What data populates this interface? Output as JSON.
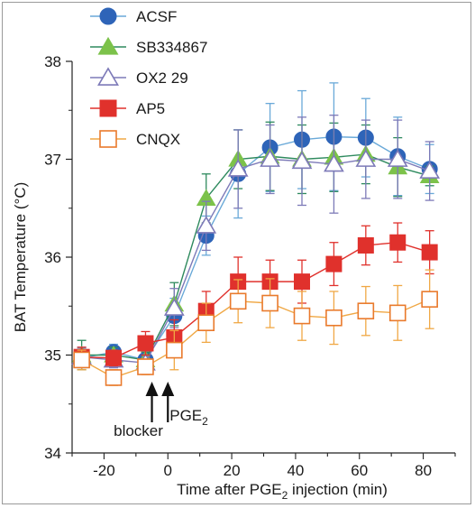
{
  "chart_data": {
    "type": "line",
    "title": "",
    "xlabel": "Time after PGE",
    "xlabel_sub": "2",
    "xlabel_tail": " injection (min)",
    "ylabel": "BAT Temperature (°C)",
    "xlim": [
      -30,
      90
    ],
    "ylim": [
      34,
      38
    ],
    "xticks": [
      -20,
      0,
      20,
      40,
      60,
      80
    ],
    "yticks": [
      34,
      35,
      36,
      37,
      38
    ],
    "grid": false,
    "legend_position": "top-left",
    "x": [
      -27,
      -17,
      -7,
      2,
      12,
      22,
      32,
      42,
      52,
      62,
      72,
      82
    ],
    "annotations": [
      {
        "label": "blocker",
        "label_sub": "",
        "x": -5
      },
      {
        "label": "PGE",
        "label_sub": "2",
        "x": 0
      }
    ],
    "series": [
      {
        "name": "ACSF",
        "marker": "circle",
        "filled": true,
        "color": "#2e64b8",
        "line_color": "#6aa9d8",
        "values": [
          34.97,
          35.03,
          34.95,
          35.4,
          36.22,
          36.85,
          37.12,
          37.2,
          37.23,
          37.22,
          37.03,
          36.9
        ],
        "errors": [
          0.1,
          0.08,
          0.1,
          0.18,
          0.2,
          0.45,
          0.45,
          0.5,
          0.55,
          0.4,
          0.4,
          0.25
        ]
      },
      {
        "name": "SB334867",
        "marker": "triangle",
        "filled": true,
        "color": "#7cc24a",
        "line_color": "#2e8a5e",
        "values": [
          35.0,
          35.0,
          34.95,
          35.52,
          36.6,
          37.0,
          37.03,
          37.0,
          37.02,
          37.05,
          36.92,
          36.83
        ],
        "errors": [
          0.15,
          0.08,
          0.08,
          0.22,
          0.25,
          0.3,
          0.35,
          0.35,
          0.35,
          0.3,
          0.3,
          0.1
        ]
      },
      {
        "name": "OX2 29",
        "marker": "triangle",
        "filled": false,
        "color": "#7d7ab8",
        "line_color": "#7d7ab8",
        "values": [
          34.98,
          34.95,
          34.92,
          35.48,
          36.32,
          36.9,
          37.0,
          36.98,
          36.95,
          37.0,
          37.0,
          36.88
        ],
        "errors": [
          0.1,
          0.08,
          0.08,
          0.2,
          0.25,
          0.4,
          0.35,
          0.45,
          0.5,
          0.4,
          0.4,
          0.3
        ]
      },
      {
        "name": "AP5",
        "marker": "square",
        "filled": true,
        "color": "#e0312c",
        "line_color": "#e0312c",
        "values": [
          34.98,
          34.97,
          35.12,
          35.18,
          35.45,
          35.75,
          35.75,
          35.75,
          35.93,
          36.12,
          36.15,
          36.05
        ],
        "errors": [
          0.1,
          0.08,
          0.12,
          0.18,
          0.2,
          0.25,
          0.22,
          0.22,
          0.22,
          0.2,
          0.2,
          0.22
        ]
      },
      {
        "name": "CNQX",
        "marker": "square",
        "filled": false,
        "color": "#e97a2c",
        "line_color": "#f0a845",
        "values": [
          34.95,
          34.77,
          34.88,
          35.05,
          35.33,
          35.55,
          35.53,
          35.4,
          35.38,
          35.45,
          35.43,
          35.57
        ],
        "errors": [
          0.1,
          0.08,
          0.08,
          0.2,
          0.2,
          0.22,
          0.25,
          0.25,
          0.27,
          0.25,
          0.28,
          0.3
        ]
      }
    ]
  }
}
